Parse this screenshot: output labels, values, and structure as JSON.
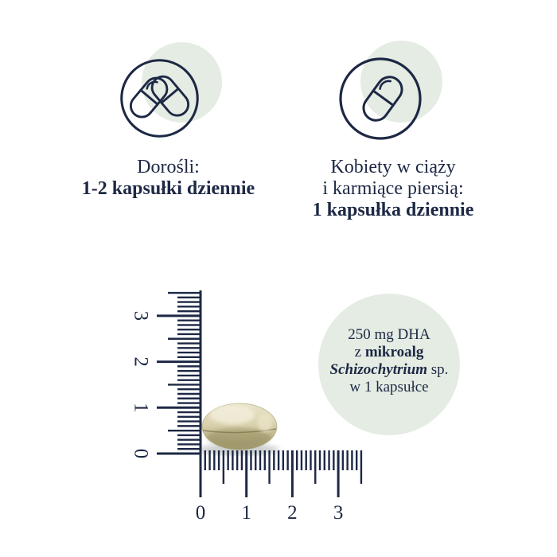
{
  "cards": [
    {
      "icon": "two-capsules-icon",
      "title": "Dorośli:",
      "amount": "1-2 kapsułki dziennie"
    },
    {
      "icon": "one-capsule-icon",
      "title_line1": "Kobiety w ciąży",
      "title_line2": "i karmiące piersią:",
      "amount": "1 kapsułka dziennie"
    }
  ],
  "info_circle": {
    "line1": "250 mg DHA",
    "line2_regular": "z ",
    "line2_bold": "mikroalg",
    "line3_italic": "Schizochytrium",
    "line3_regular": " sp.",
    "line4": "w 1 kapsułce"
  },
  "ruler": {
    "horizontal_labels": [
      "0",
      "1",
      "2",
      "3"
    ],
    "vertical_labels": [
      "0",
      "1",
      "2",
      "3"
    ],
    "units_max": 3.5,
    "minor_per_unit": 10
  },
  "colors": {
    "navy": "#1d2845",
    "pale_green": "#e4ece3",
    "capsule_light": "#eae4cb",
    "capsule_mid": "#d9d2ae",
    "capsule_deep": "#bdb48a",
    "capsule_dark": "#a1996f",
    "capsule_seam": "#7d7450",
    "shadow": "#9aa09c"
  }
}
